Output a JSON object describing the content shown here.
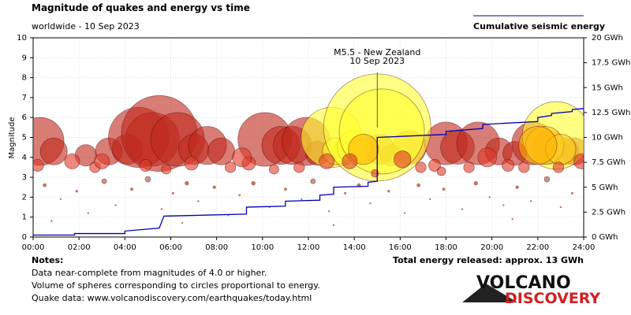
{
  "chart_data": {
    "type": "scatter",
    "title": "Magnitude of quakes and energy vs time",
    "subtitle": "worldwide - 10 Sep 2023",
    "ylabel": "Magnitude",
    "annotation": [
      "M5.5 - New Zealand",
      "10 Sep 2023"
    ],
    "xlim": [
      0,
      24
    ],
    "xticks": [
      {
        "value": 0,
        "label": "00:00"
      },
      {
        "value": 2,
        "label": "02:00"
      },
      {
        "value": 4,
        "label": "04:00"
      },
      {
        "value": 6,
        "label": "06:00"
      },
      {
        "value": 8,
        "label": "08:00"
      },
      {
        "value": 10,
        "label": "10:00"
      },
      {
        "value": 12,
        "label": "12:00"
      },
      {
        "value": 14,
        "label": "14:00"
      },
      {
        "value": 16,
        "label": "16:00"
      },
      {
        "value": 18,
        "label": "18:00"
      },
      {
        "value": 20,
        "label": "20:00"
      },
      {
        "value": 22,
        "label": "22:00"
      },
      {
        "value": 24,
        "label": "24:00"
      }
    ],
    "ylim": [
      0,
      10
    ],
    "yticks": [
      0,
      1,
      2,
      3,
      4,
      5,
      6,
      7,
      8,
      9,
      10
    ],
    "y2lim": [
      0,
      20
    ],
    "y2ticks": [
      {
        "value": 0,
        "label": "0 GWh"
      },
      {
        "value": 2.5,
        "label": "2.5 GWh"
      },
      {
        "value": 5,
        "label": "5 GWh"
      },
      {
        "value": 7.5,
        "label": "7.5 GWh"
      },
      {
        "value": 10,
        "label": "10 GWh"
      },
      {
        "value": 12.5,
        "label": "12.5 GWh"
      },
      {
        "value": 15,
        "label": "15 GWh"
      },
      {
        "value": 17.5,
        "label": "17.5 GWh"
      },
      {
        "value": 20,
        "label": "20 GWh"
      }
    ],
    "grid": true,
    "series": [
      {
        "type": "scatter",
        "x": [
          0.3,
          0.9,
          2.3,
          3.3,
          4.1,
          4.6,
          5.2,
          5.5,
          6.3,
          7.0,
          7.6,
          8.2,
          10.1,
          10.8,
          11.3,
          11.9,
          12.4,
          13.5,
          15.1,
          15.6,
          16.4,
          18.0,
          18.5,
          19.4,
          20.3,
          21.0,
          21.8,
          22.5,
          23.2,
          23.6,
          13.0,
          13.2,
          14.0,
          15.0,
          15.2,
          22.8,
          22.3,
          23.0,
          14.4,
          22.0,
          1.7,
          2.7,
          3.0,
          4.9,
          6.9,
          8.6,
          9.4,
          10.5,
          11.6,
          13.8,
          14.9,
          16.9,
          17.5,
          19.0,
          20.7,
          23.9,
          0.2,
          5.8,
          9.1,
          12.8,
          16.1,
          19.8,
          21.4,
          17.8,
          22.9,
          0.5,
          1.2,
          1.9,
          2.4,
          3.1,
          3.6,
          4.3,
          5.0,
          5.6,
          6.1,
          6.7,
          7.2,
          7.9,
          8.5,
          9.0,
          9.6,
          10.3,
          11.0,
          11.7,
          12.2,
          12.9,
          13.6,
          14.2,
          14.7,
          15.5,
          16.2,
          16.8,
          17.3,
          17.9,
          18.7,
          19.3,
          19.9,
          20.5,
          21.1,
          21.7,
          22.4,
          23.0,
          23.5,
          0.8,
          6.5,
          13.1,
          20.9
        ],
        "values": [
          4.8,
          4.3,
          4.1,
          4.3,
          4.4,
          5.0,
          4.9,
          5.2,
          4.9,
          4.4,
          4.6,
          4.3,
          4.9,
          4.6,
          4.6,
          4.8,
          4.2,
          4.2,
          4.4,
          4.1,
          4.5,
          4.7,
          4.5,
          4.7,
          4.3,
          4.2,
          4.7,
          4.5,
          4.3,
          4.3,
          5.0,
          4.3,
          4.5,
          5.5,
          5.3,
          5.1,
          4.6,
          4.4,
          4.4,
          4.6,
          3.8,
          3.5,
          3.8,
          3.6,
          3.7,
          3.5,
          3.7,
          3.4,
          3.5,
          3.8,
          3.2,
          3.5,
          3.6,
          3.5,
          3.6,
          3.8,
          3.6,
          3.4,
          4.0,
          3.8,
          3.9,
          4.0,
          3.5,
          3.3,
          3.5,
          2.6,
          1.9,
          2.3,
          1.2,
          2.8,
          1.6,
          2.4,
          2.9,
          1.4,
          2.2,
          2.7,
          1.8,
          2.5,
          1.1,
          2.1,
          2.7,
          1.5,
          2.4,
          1.9,
          2.8,
          1.3,
          2.2,
          2.6,
          1.7,
          2.3,
          1.2,
          2.6,
          1.9,
          2.4,
          1.4,
          2.7,
          2.0,
          1.6,
          2.5,
          1.8,
          2.9,
          1.5,
          2.2,
          0.8,
          0.7,
          0.6,
          0.9
        ],
        "colors": [
          "#c0281c",
          "#c0281c",
          "#c0281c",
          "#c0281c",
          "#c0281c",
          "#c0281c",
          "#c0281c",
          "#c0281c",
          "#c0281c",
          "#c0281c",
          "#c0281c",
          "#c0281c",
          "#c0281c",
          "#c0281c",
          "#c0281c",
          "#c0281c",
          "#c0281c",
          "#c0281c",
          "#c0281c",
          "#c0281c",
          "#d04010",
          "#c0281c",
          "#c0281c",
          "#c0281c",
          "#c0281c",
          "#c0281c",
          "#c0281c",
          "#c0281c",
          "#c0281c",
          "#c0281c",
          "#ffff30",
          "#ffff30",
          "#ffff30",
          "#ffff30",
          "#ffff30",
          "#ffff30",
          "#ffd020",
          "#ffd020",
          "#ffb000",
          "#ffb000",
          "#e03828",
          "#e03828",
          "#e03828",
          "#e03828",
          "#e03828",
          "#e03828",
          "#e03828",
          "#e03828",
          "#e03828",
          "#e03828",
          "#e03828",
          "#e03828",
          "#e03828",
          "#e03828",
          "#e03828",
          "#e03828",
          "#e03828",
          "#e03828",
          "#e03828",
          "#e03828",
          "#e03828",
          "#e03828",
          "#e03828",
          "#e03828",
          "#e03828",
          "#b05038",
          "#b05038",
          "#b05038",
          "#b05038",
          "#b05038",
          "#b05038",
          "#b05038",
          "#b05038",
          "#b05038",
          "#b05038",
          "#b05038",
          "#b05038",
          "#b05038",
          "#b05038",
          "#b05038",
          "#b05038",
          "#b05038",
          "#b05038",
          "#b05038",
          "#b05038",
          "#b05038",
          "#b05038",
          "#b05038",
          "#b05038",
          "#b05038",
          "#b05038",
          "#b05038",
          "#b05038",
          "#b05038",
          "#b05038",
          "#b05038",
          "#b05038",
          "#b05038",
          "#b05038",
          "#b05038",
          "#b05038",
          "#b05038",
          "#b05038",
          "#b05038",
          "#b05038",
          "#b05038",
          "#b05038"
        ]
      },
      {
        "type": "line",
        "name": "Cumulative seismic energy",
        "color": "#0000b0",
        "axis": "y2",
        "x": [
          0,
          1.8,
          1.8,
          4.0,
          4.0,
          5.5,
          5.7,
          9.3,
          9.3,
          11.0,
          11.0,
          12.5,
          12.5,
          13.1,
          13.1,
          14.6,
          14.6,
          15.0,
          15.0,
          18.0,
          18.0,
          19.6,
          19.6,
          22.0,
          22.0,
          22.6,
          22.6,
          23.5,
          23.5,
          24
        ],
        "values": [
          0.2,
          0.2,
          0.35,
          0.35,
          0.6,
          0.9,
          2.1,
          2.3,
          3.0,
          3.1,
          3.6,
          3.7,
          4.2,
          4.3,
          5.0,
          5.1,
          5.5,
          5.6,
          10.0,
          10.3,
          10.6,
          10.9,
          11.3,
          11.6,
          12.0,
          12.2,
          12.4,
          12.6,
          12.8,
          12.9
        ]
      }
    ]
  },
  "notes": {
    "heading": "Notes:",
    "lines": [
      "Data near-complete from magnitudes of 4.0 or higher.",
      "Volume of spheres corresponding to circles proportional to energy.",
      "Quake data: www.volcanodiscovery.com/earthquakes/today.html"
    ]
  },
  "total_energy": "Total energy released: approx. 13 GWh",
  "logo": {
    "top": "VOLCANO",
    "bottom": "DISCOVERY"
  }
}
